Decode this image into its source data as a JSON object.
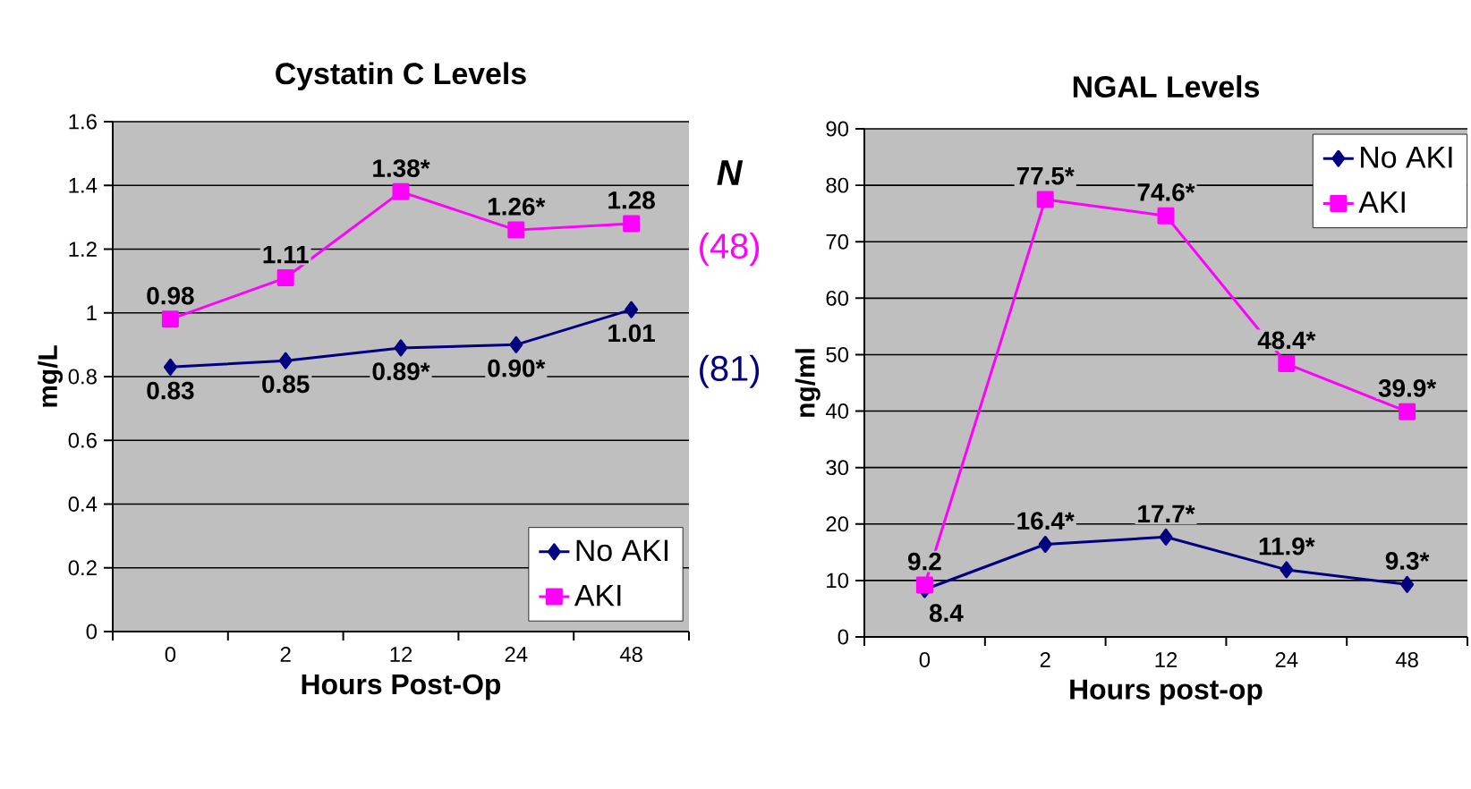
{
  "chart_data": [
    {
      "type": "line",
      "title": "Cystatin C Levels",
      "xlabel": "Hours Post-Op",
      "ylabel": "mg/L",
      "categories": [
        "0",
        "2",
        "12",
        "24",
        "48"
      ],
      "ylim": [
        0,
        1.6
      ],
      "yticks": [
        0,
        0.2,
        0.4,
        0.6,
        0.8,
        1,
        1.2,
        1.4,
        1.6
      ],
      "grid": "y",
      "legend": "bottom right",
      "line_style": "solid",
      "series": [
        {
          "name": "No AKI",
          "color": "#000080",
          "marker": "diamond",
          "values": [
            0.83,
            0.85,
            0.89,
            0.9,
            1.01
          ],
          "value_labels": [
            "0.83",
            "0.85",
            "0.89*",
            "0.90*",
            "1.01"
          ]
        },
        {
          "name": "AKI",
          "color": "#ff00ff",
          "marker": "square",
          "values": [
            0.98,
            1.11,
            1.38,
            1.26,
            1.28
          ],
          "value_labels": [
            "0.98",
            "1.11",
            "1.38*",
            "1.26*",
            "1.28"
          ]
        }
      ],
      "annotations": [
        "N",
        "(48)",
        "(81)"
      ]
    },
    {
      "type": "line",
      "title": "NGAL Levels",
      "xlabel": "Hours post-op",
      "ylabel": "ng/ml",
      "categories": [
        "0",
        "2",
        "12",
        "24",
        "48"
      ],
      "ylim": [
        0,
        90
      ],
      "yticks": [
        0,
        10,
        20,
        30,
        40,
        50,
        60,
        70,
        80,
        90
      ],
      "grid": "y",
      "legend": "top right",
      "line_style": "solid",
      "series": [
        {
          "name": "No AKI",
          "color": "#000080",
          "marker": "diamond",
          "values": [
            8.4,
            16.4,
            17.7,
            11.9,
            9.3
          ],
          "value_labels": [
            "8.4",
            "16.4*",
            "17.7*",
            "11.9*",
            "9.3*"
          ]
        },
        {
          "name": "AKI",
          "color": "#ff00ff",
          "marker": "square",
          "values": [
            9.2,
            77.5,
            74.6,
            48.4,
            39.9
          ],
          "value_labels": [
            "9.2",
            "77.5*",
            "74.6*",
            "48.4*",
            "39.9*"
          ]
        }
      ]
    }
  ]
}
